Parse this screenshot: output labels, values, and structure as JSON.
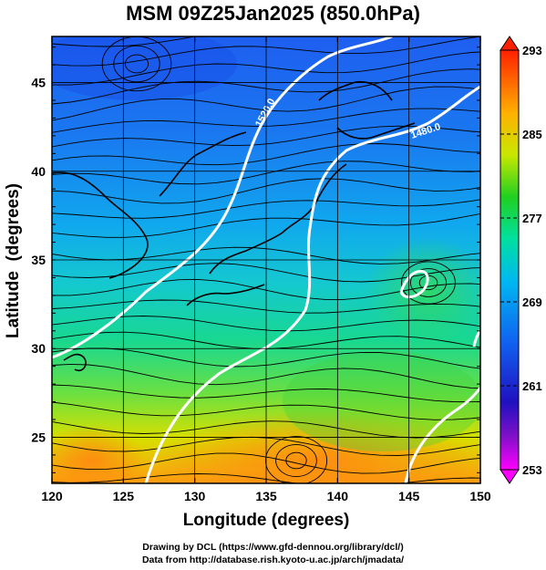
{
  "title": "MSM 09Z25Jan2025 (850.0hPa)",
  "axes": {
    "xlabel": "Longitude (degrees)",
    "ylabel": "Latitude  (degrees)",
    "xticks": [
      "120",
      "125",
      "130",
      "135",
      "140",
      "145",
      "150"
    ],
    "yticks": [
      "25",
      "30",
      "35",
      "40",
      "45"
    ],
    "xlim": [
      120,
      150
    ],
    "ylim": [
      22.4,
      47.6
    ]
  },
  "colorbar": {
    "ticks": [
      "293",
      "285",
      "277",
      "269",
      "261",
      "253"
    ],
    "range": [
      253,
      293
    ],
    "colors": [
      "#ff00ff",
      "#2010c0",
      "#1060f0",
      "#00b8f0",
      "#00e0a0",
      "#20d020",
      "#c8e800",
      "#ffb000",
      "#ff4000"
    ]
  },
  "contours": [
    {
      "label": "1520.0"
    },
    {
      "label": "1480.0"
    }
  ],
  "credits": {
    "line1": "Drawing by DCL (https://www.gfd-dennou.org/library/dcl/)",
    "line2": "Data from http://database.rish.kyoto-u.ac.jp/arch/jmadata/"
  }
}
